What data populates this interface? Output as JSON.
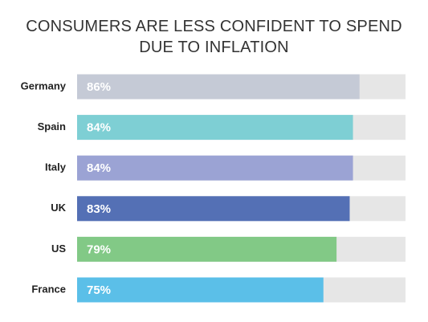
{
  "chart_data": {
    "type": "bar",
    "orientation": "horizontal",
    "title": "CONSUMERS ARE LESS CONFIDENT TO SPEND DUE TO INFLATION",
    "categories": [
      "Germany",
      "Spain",
      "Italy",
      "UK",
      "US",
      "France"
    ],
    "values": [
      86,
      84,
      84,
      83,
      79,
      75
    ],
    "value_labels": [
      "86%",
      "84%",
      "84%",
      "83%",
      "79%",
      "75%"
    ],
    "colors": [
      "#c5cad6",
      "#7ecfd4",
      "#9ba3d4",
      "#5470b5",
      "#82c986",
      "#5bbfe8"
    ],
    "track_color": "#e6e6e6",
    "xlim": [
      0,
      100
    ]
  }
}
